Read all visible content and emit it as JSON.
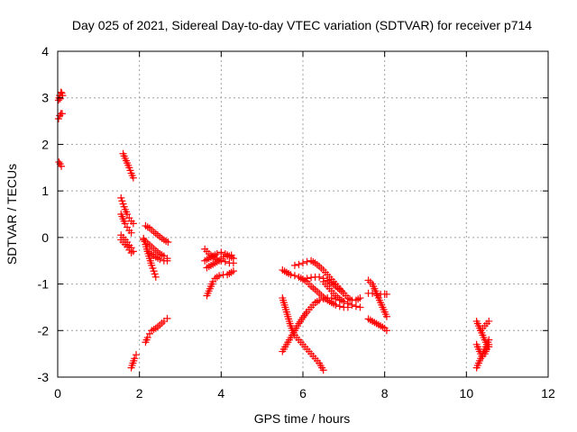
{
  "chart_data": {
    "type": "scatter",
    "title": "Day 025 of 2021, Sidereal Day-to-day VTEC variation (SDTVAR) for receiver p714",
    "xlabel": "GPS time / hours",
    "ylabel": "SDTVAR / TECUs",
    "xlim": [
      0,
      12
    ],
    "ylim": [
      -3,
      4
    ],
    "xticks": [
      0,
      2,
      4,
      6,
      8,
      10,
      12
    ],
    "yticks": [
      -3,
      -2,
      -1,
      0,
      1,
      2,
      3,
      4
    ],
    "xtick_labels": [
      "0",
      "2",
      "4",
      "6",
      "8",
      "10",
      "12"
    ],
    "ytick_labels": [
      "-3",
      "-2",
      "-1",
      "0",
      "1",
      "2",
      "3",
      "4"
    ],
    "grid": true,
    "marker": "+",
    "marker_color": "#ff0000",
    "segments": [
      {
        "points": [
          [
            0.02,
            2.95
          ],
          [
            0.05,
            3.05
          ],
          [
            0.08,
            3.12
          ],
          [
            0.1,
            3.1
          ],
          [
            0.12,
            3.05
          ],
          [
            0.06,
            2.98
          ]
        ]
      },
      {
        "points": [
          [
            0.02,
            2.55
          ],
          [
            0.05,
            2.62
          ],
          [
            0.08,
            2.66
          ],
          [
            0.11,
            2.66
          ]
        ]
      },
      {
        "points": [
          [
            0.03,
            1.62
          ],
          [
            0.06,
            1.58
          ],
          [
            0.09,
            1.53
          ]
        ]
      },
      {
        "points": [
          [
            1.6,
            1.8
          ],
          [
            1.65,
            1.7
          ],
          [
            1.7,
            1.6
          ],
          [
            1.75,
            1.5
          ],
          [
            1.8,
            1.38
          ],
          [
            1.85,
            1.28
          ]
        ]
      },
      {
        "points": [
          [
            1.55,
            0.85
          ],
          [
            1.6,
            0.72
          ],
          [
            1.65,
            0.6
          ],
          [
            1.7,
            0.5
          ],
          [
            1.75,
            0.42
          ],
          [
            1.8,
            0.35
          ],
          [
            1.85,
            0.3
          ]
        ]
      },
      {
        "points": [
          [
            1.55,
            0.5
          ],
          [
            1.6,
            0.4
          ],
          [
            1.65,
            0.3
          ],
          [
            1.7,
            0.22
          ],
          [
            1.75,
            0.15
          ],
          [
            1.8,
            0.1
          ]
        ]
      },
      {
        "points": [
          [
            1.55,
            0.05
          ],
          [
            1.6,
            0.0
          ],
          [
            1.65,
            -0.05
          ],
          [
            1.7,
            -0.1
          ],
          [
            1.75,
            -0.17
          ],
          [
            1.8,
            -0.22
          ],
          [
            1.85,
            -0.3
          ]
        ]
      },
      {
        "points": [
          [
            1.55,
            -0.05
          ],
          [
            1.6,
            -0.1
          ],
          [
            1.65,
            -0.15
          ],
          [
            1.7,
            -0.2
          ],
          [
            1.75,
            -0.27
          ],
          [
            1.8,
            -0.33
          ]
        ]
      },
      {
        "points": [
          [
            1.8,
            -2.8
          ],
          [
            1.84,
            -2.7
          ],
          [
            1.88,
            -2.6
          ],
          [
            1.92,
            -2.52
          ]
        ]
      },
      {
        "points": [
          [
            2.1,
            -0.02
          ],
          [
            2.15,
            -0.15
          ],
          [
            2.2,
            -0.3
          ],
          [
            2.25,
            -0.45
          ],
          [
            2.3,
            -0.6
          ],
          [
            2.35,
            -0.72
          ],
          [
            2.4,
            -0.85
          ]
        ]
      },
      {
        "points": [
          [
            2.1,
            -0.05
          ],
          [
            2.2,
            -0.12
          ],
          [
            2.3,
            -0.2
          ],
          [
            2.4,
            -0.28
          ],
          [
            2.5,
            -0.35
          ],
          [
            2.6,
            -0.4
          ],
          [
            2.68,
            -0.45
          ]
        ]
      },
      {
        "points": [
          [
            2.2,
            -0.3
          ],
          [
            2.3,
            -0.36
          ],
          [
            2.4,
            -0.42
          ],
          [
            2.5,
            -0.47
          ],
          [
            2.6,
            -0.5
          ],
          [
            2.68,
            -0.5
          ]
        ]
      },
      {
        "points": [
          [
            2.15,
            0.25
          ],
          [
            2.25,
            0.2
          ],
          [
            2.35,
            0.12
          ],
          [
            2.45,
            0.05
          ],
          [
            2.55,
            -0.02
          ],
          [
            2.65,
            -0.08
          ],
          [
            2.7,
            -0.1
          ]
        ]
      },
      {
        "points": [
          [
            2.15,
            -2.25
          ],
          [
            2.2,
            -2.15
          ],
          [
            2.25,
            -2.07
          ],
          [
            2.3,
            -2.0
          ],
          [
            2.4,
            -1.95
          ],
          [
            2.5,
            -1.88
          ],
          [
            2.6,
            -1.8
          ],
          [
            2.68,
            -1.74
          ]
        ]
      },
      {
        "points": [
          [
            3.65,
            -1.25
          ],
          [
            3.7,
            -1.15
          ],
          [
            3.75,
            -1.05
          ],
          [
            3.8,
            -0.95
          ],
          [
            3.85,
            -0.88
          ],
          [
            3.95,
            -0.82
          ],
          [
            4.05,
            -0.8
          ],
          [
            4.15,
            -0.8
          ],
          [
            4.25,
            -0.75
          ],
          [
            4.3,
            -0.72
          ]
        ]
      },
      {
        "points": [
          [
            3.6,
            -0.25
          ],
          [
            3.7,
            -0.35
          ],
          [
            3.8,
            -0.42
          ],
          [
            3.9,
            -0.48
          ],
          [
            4.0,
            -0.5
          ],
          [
            4.1,
            -0.52
          ],
          [
            4.2,
            -0.55
          ],
          [
            4.3,
            -0.55
          ]
        ]
      },
      {
        "points": [
          [
            3.6,
            -0.5
          ],
          [
            3.7,
            -0.45
          ],
          [
            3.8,
            -0.4
          ],
          [
            3.9,
            -0.35
          ],
          [
            4.0,
            -0.32
          ],
          [
            4.1,
            -0.35
          ],
          [
            4.2,
            -0.4
          ],
          [
            4.3,
            -0.45
          ]
        ]
      },
      {
        "points": [
          [
            3.65,
            -0.65
          ],
          [
            3.75,
            -0.6
          ],
          [
            3.85,
            -0.55
          ],
          [
            3.95,
            -0.5
          ],
          [
            4.05,
            -0.42
          ],
          [
            4.15,
            -0.4
          ],
          [
            4.25,
            -0.38
          ]
        ]
      },
      {
        "points": [
          [
            5.5,
            -2.45
          ],
          [
            5.6,
            -2.3
          ],
          [
            5.7,
            -2.15
          ],
          [
            5.8,
            -2.0
          ],
          [
            5.9,
            -1.85
          ],
          [
            6.0,
            -1.72
          ],
          [
            6.1,
            -1.6
          ],
          [
            6.2,
            -1.5
          ],
          [
            6.3,
            -1.4
          ],
          [
            6.4,
            -1.35
          ],
          [
            6.5,
            -1.32
          ],
          [
            6.6,
            -1.3
          ],
          [
            6.7,
            -1.3
          ],
          [
            6.8,
            -1.32
          ],
          [
            6.9,
            -1.35
          ],
          [
            7.0,
            -1.38
          ],
          [
            7.1,
            -1.42
          ],
          [
            7.2,
            -1.45
          ],
          [
            7.3,
            -1.48
          ],
          [
            7.4,
            -1.5
          ]
        ]
      },
      {
        "points": [
          [
            5.5,
            -0.7
          ],
          [
            5.6,
            -0.75
          ],
          [
            5.7,
            -0.8
          ],
          [
            5.8,
            -0.82
          ],
          [
            5.9,
            -0.85
          ],
          [
            6.0,
            -0.9
          ],
          [
            6.1,
            -0.95
          ],
          [
            6.2,
            -1.05
          ],
          [
            6.3,
            -1.12
          ],
          [
            6.4,
            -1.2
          ],
          [
            6.5,
            -1.28
          ],
          [
            6.6,
            -1.35
          ],
          [
            6.7,
            -1.4
          ],
          [
            6.8,
            -1.45
          ],
          [
            6.9,
            -1.48
          ],
          [
            7.0,
            -1.5
          ],
          [
            7.1,
            -1.5
          ]
        ]
      },
      {
        "points": [
          [
            5.8,
            -0.6
          ],
          [
            5.9,
            -0.58
          ],
          [
            6.0,
            -0.55
          ],
          [
            6.1,
            -0.52
          ],
          [
            6.2,
            -0.5
          ],
          [
            6.3,
            -0.55
          ],
          [
            6.4,
            -0.62
          ],
          [
            6.5,
            -0.7
          ],
          [
            6.6,
            -0.8
          ],
          [
            6.7,
            -0.9
          ],
          [
            6.8,
            -1.0
          ],
          [
            6.9,
            -1.1
          ],
          [
            7.0,
            -1.2
          ],
          [
            7.1,
            -1.3
          ],
          [
            7.2,
            -1.35
          ],
          [
            7.3,
            -1.35
          ],
          [
            7.4,
            -1.3
          ]
        ]
      },
      {
        "points": [
          [
            5.5,
            -1.3
          ],
          [
            5.55,
            -1.45
          ],
          [
            5.6,
            -1.6
          ],
          [
            5.65,
            -1.75
          ],
          [
            5.7,
            -1.9
          ],
          [
            5.75,
            -2.0
          ],
          [
            5.8,
            -2.1
          ],
          [
            5.9,
            -2.2
          ],
          [
            6.0,
            -2.3
          ],
          [
            6.1,
            -2.4
          ],
          [
            6.2,
            -2.5
          ],
          [
            6.3,
            -2.6
          ],
          [
            6.4,
            -2.7
          ],
          [
            6.5,
            -2.85
          ]
        ]
      },
      {
        "points": [
          [
            6.0,
            -0.9
          ],
          [
            6.1,
            -0.88
          ],
          [
            6.2,
            -0.86
          ],
          [
            6.3,
            -0.85
          ],
          [
            6.4,
            -0.85
          ],
          [
            6.5,
            -0.88
          ],
          [
            6.6,
            -0.92
          ],
          [
            6.7,
            -0.98
          ],
          [
            6.8,
            -1.05
          ],
          [
            6.9,
            -1.12
          ],
          [
            7.0,
            -1.2
          ]
        ]
      },
      {
        "points": [
          [
            6.5,
            -0.95
          ],
          [
            6.6,
            -1.05
          ],
          [
            6.7,
            -1.15
          ],
          [
            6.8,
            -1.25
          ],
          [
            6.9,
            -1.32
          ],
          [
            7.0,
            -1.38
          ],
          [
            7.1,
            -1.42
          ]
        ]
      },
      {
        "points": [
          [
            7.6,
            -0.92
          ],
          [
            7.7,
            -1.0
          ],
          [
            7.75,
            -1.1
          ],
          [
            7.8,
            -1.2
          ],
          [
            7.85,
            -1.3
          ],
          [
            7.9,
            -1.4
          ],
          [
            7.95,
            -1.5
          ],
          [
            8.0,
            -1.6
          ],
          [
            8.05,
            -1.7
          ]
        ]
      },
      {
        "points": [
          [
            7.6,
            -1.2
          ],
          [
            7.7,
            -1.2
          ],
          [
            7.8,
            -1.22
          ],
          [
            7.9,
            -1.22
          ],
          [
            8.0,
            -1.22
          ],
          [
            8.05,
            -1.22
          ]
        ]
      },
      {
        "points": [
          [
            7.6,
            -1.75
          ],
          [
            7.7,
            -1.8
          ],
          [
            7.8,
            -1.85
          ],
          [
            7.9,
            -1.9
          ],
          [
            8.0,
            -1.95
          ],
          [
            8.05,
            -2.0
          ]
        ]
      },
      {
        "points": [
          [
            10.25,
            -1.8
          ],
          [
            10.3,
            -1.9
          ],
          [
            10.35,
            -2.0
          ],
          [
            10.4,
            -2.1
          ],
          [
            10.45,
            -2.2
          ],
          [
            10.5,
            -2.3
          ],
          [
            10.55,
            -2.35
          ]
        ]
      },
      {
        "points": [
          [
            10.25,
            -2.8
          ],
          [
            10.3,
            -2.7
          ],
          [
            10.35,
            -2.6
          ],
          [
            10.4,
            -2.5
          ],
          [
            10.45,
            -2.4
          ],
          [
            10.5,
            -2.3
          ],
          [
            10.55,
            -2.2
          ]
        ]
      },
      {
        "points": [
          [
            10.25,
            -2.3
          ],
          [
            10.3,
            -2.4
          ],
          [
            10.35,
            -2.5
          ],
          [
            10.4,
            -2.55
          ],
          [
            10.45,
            -2.5
          ],
          [
            10.5,
            -2.4
          ],
          [
            10.55,
            -2.3
          ]
        ]
      },
      {
        "points": [
          [
            10.35,
            -2.0
          ],
          [
            10.4,
            -1.95
          ],
          [
            10.45,
            -1.9
          ],
          [
            10.5,
            -1.85
          ],
          [
            10.55,
            -1.8
          ]
        ]
      }
    ]
  }
}
